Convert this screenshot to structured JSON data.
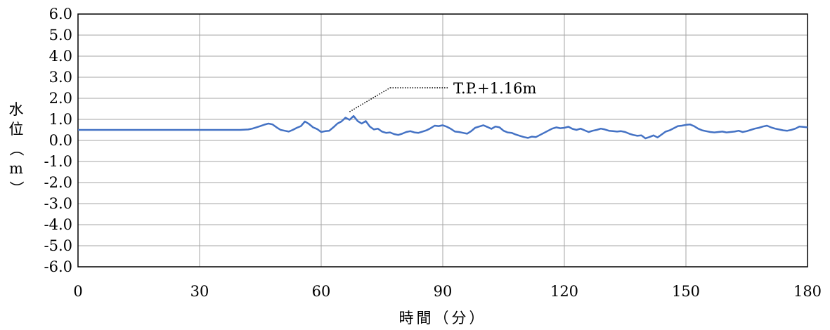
{
  "chart_data": {
    "type": "line",
    "xlabel": "時間（分）",
    "ylabel_chars": [
      "水",
      "位",
      "（",
      "m",
      "）"
    ],
    "xlim": [
      0,
      180
    ],
    "ylim": [
      -6.0,
      6.0
    ],
    "x_ticks": [
      0,
      30,
      60,
      90,
      120,
      150,
      180
    ],
    "y_ticks": [
      6.0,
      5.0,
      4.0,
      3.0,
      2.0,
      1.0,
      0.0,
      -1.0,
      -2.0,
      -3.0,
      -4.0,
      -5.0,
      -6.0
    ],
    "y_tick_labels": [
      "6.0",
      "5.0",
      "4.0",
      "3.0",
      "2.0",
      "1.0",
      "0.0",
      "-1.0",
      "-2.0",
      "-3.0",
      "-4.0",
      "-5.0",
      "-6.0"
    ],
    "x_tick_labels": [
      "0",
      "30",
      "60",
      "90",
      "120",
      "150",
      "180"
    ],
    "grid": true,
    "line_color": "#4472c4",
    "annotation": {
      "text": "T.P.+1.16m",
      "x": 67,
      "y": 1.16,
      "label_x": 77,
      "label_y": 2.5
    },
    "series": [
      {
        "x": [
          0,
          40,
          42,
          43,
          44,
          45,
          46,
          47,
          48,
          49,
          50,
          51,
          52,
          53,
          54,
          55,
          56,
          57,
          58,
          59,
          60,
          61,
          62,
          63,
          64,
          65,
          66,
          67,
          68,
          69,
          70,
          71,
          72,
          73,
          74,
          75,
          76,
          77,
          78,
          79,
          80,
          81,
          82,
          83,
          84,
          85,
          86,
          87,
          88,
          89,
          90,
          91,
          92,
          93,
          94,
          95,
          96,
          97,
          98,
          99,
          100,
          101,
          102,
          103,
          104,
          105,
          106,
          107,
          108,
          109,
          110,
          111,
          112,
          113,
          114,
          115,
          116,
          117,
          118,
          119,
          120,
          121,
          122,
          123,
          124,
          125,
          126,
          127,
          128,
          129,
          130,
          131,
          132,
          133,
          134,
          135,
          136,
          137,
          138,
          139,
          140,
          141,
          142,
          143,
          144,
          145,
          146,
          147,
          148,
          149,
          150,
          151,
          152,
          153,
          154,
          155,
          156,
          157,
          158,
          159,
          160,
          161,
          162,
          163,
          164,
          165,
          166,
          167,
          168,
          169,
          170,
          171,
          172,
          173,
          174,
          175,
          176,
          177,
          178,
          179,
          180
        ],
        "y": [
          0.5,
          0.5,
          0.52,
          0.56,
          0.62,
          0.68,
          0.75,
          0.8,
          0.76,
          0.62,
          0.5,
          0.46,
          0.42,
          0.5,
          0.6,
          0.68,
          0.9,
          0.78,
          0.62,
          0.54,
          0.4,
          0.44,
          0.46,
          0.62,
          0.8,
          0.9,
          1.08,
          0.98,
          1.16,
          0.92,
          0.8,
          0.92,
          0.66,
          0.52,
          0.56,
          0.42,
          0.36,
          0.38,
          0.3,
          0.26,
          0.32,
          0.4,
          0.44,
          0.38,
          0.36,
          0.42,
          0.48,
          0.58,
          0.7,
          0.68,
          0.72,
          0.65,
          0.55,
          0.42,
          0.4,
          0.36,
          0.32,
          0.44,
          0.6,
          0.66,
          0.72,
          0.64,
          0.55,
          0.66,
          0.62,
          0.46,
          0.38,
          0.36,
          0.28,
          0.22,
          0.16,
          0.12,
          0.18,
          0.16,
          0.26,
          0.36,
          0.46,
          0.56,
          0.62,
          0.58,
          0.6,
          0.65,
          0.55,
          0.5,
          0.56,
          0.48,
          0.4,
          0.46,
          0.5,
          0.56,
          0.52,
          0.46,
          0.44,
          0.42,
          0.44,
          0.4,
          0.32,
          0.26,
          0.22,
          0.24,
          0.1,
          0.16,
          0.24,
          0.14,
          0.28,
          0.42,
          0.48,
          0.58,
          0.68,
          0.7,
          0.74,
          0.76,
          0.68,
          0.56,
          0.48,
          0.44,
          0.4,
          0.38,
          0.4,
          0.42,
          0.38,
          0.4,
          0.42,
          0.46,
          0.4,
          0.44,
          0.5,
          0.56,
          0.6,
          0.66,
          0.7,
          0.62,
          0.56,
          0.52,
          0.48,
          0.46,
          0.5,
          0.56,
          0.66,
          0.64,
          0.62
        ]
      }
    ]
  }
}
